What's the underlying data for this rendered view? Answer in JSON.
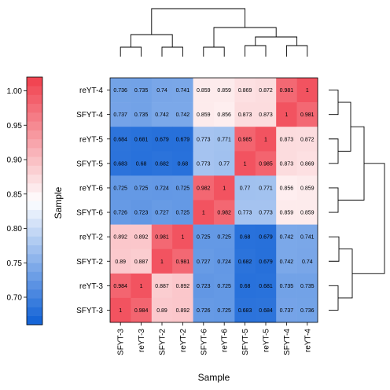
{
  "chart_data": {
    "type": "heatmap",
    "xlabel": "Sample",
    "ylabel": "Sample",
    "x_categories": [
      "SFYT-3",
      "reYT-3",
      "SFYT-2",
      "reYT-2",
      "SFYT-6",
      "reYT-6",
      "SFYT-5",
      "reYT-5",
      "SFYT-4",
      "reYT-4"
    ],
    "y_categories": [
      "reYT-4",
      "SFYT-4",
      "reYT-5",
      "SFYT-5",
      "reYT-6",
      "SFYT-6",
      "reYT-2",
      "SFYT-2",
      "reYT-3",
      "SFYT-3"
    ],
    "values": [
      [
        "0.736",
        "0.735",
        "0.74",
        "0.741",
        "0.859",
        "0.859",
        "0.869",
        "0.872",
        "0.981",
        "1"
      ],
      [
        "0.737",
        "0.735",
        "0.742",
        "0.742",
        "0.859",
        "0.856",
        "0.873",
        "0.873",
        "1",
        "0.981"
      ],
      [
        "0.684",
        "0.681",
        "0.679",
        "0.679",
        "0.773",
        "0.771",
        "0.985",
        "1",
        "0.873",
        "0.872"
      ],
      [
        "0.683",
        "0.68",
        "0.682",
        "0.68",
        "0.773",
        "0.77",
        "1",
        "0.985",
        "0.873",
        "0.869"
      ],
      [
        "0.725",
        "0.725",
        "0.724",
        "0.725",
        "0.982",
        "1",
        "0.77",
        "0.771",
        "0.856",
        "0.859"
      ],
      [
        "0.726",
        "0.723",
        "0.727",
        "0.725",
        "1",
        "0.982",
        "0.773",
        "0.773",
        "0.859",
        "0.859"
      ],
      [
        "0.892",
        "0.892",
        "0.981",
        "1",
        "0.725",
        "0.725",
        "0.68",
        "0.679",
        "0.742",
        "0.741"
      ],
      [
        "0.89",
        "0.887",
        "1",
        "0.981",
        "0.727",
        "0.724",
        "0.682",
        "0.679",
        "0.742",
        "0.74"
      ],
      [
        "0.984",
        "1",
        "0.887",
        "0.892",
        "0.723",
        "0.725",
        "0.68",
        "0.681",
        "0.735",
        "0.735"
      ],
      [
        "1",
        "0.984",
        "0.89",
        "0.892",
        "0.726",
        "0.725",
        "0.683",
        "0.684",
        "0.737",
        "0.736"
      ]
    ],
    "colorbar": {
      "range": [
        0.66,
        1.02
      ],
      "ticks": [
        "0.70",
        "0.75",
        "0.80",
        "0.85",
        "0.90",
        "0.95",
        "1.00"
      ],
      "low_color": "#0d5fd6",
      "mid_color": "#ffffff",
      "high_color": "#f03e4c",
      "mid_value": 0.84
    },
    "dendrogram": true
  }
}
